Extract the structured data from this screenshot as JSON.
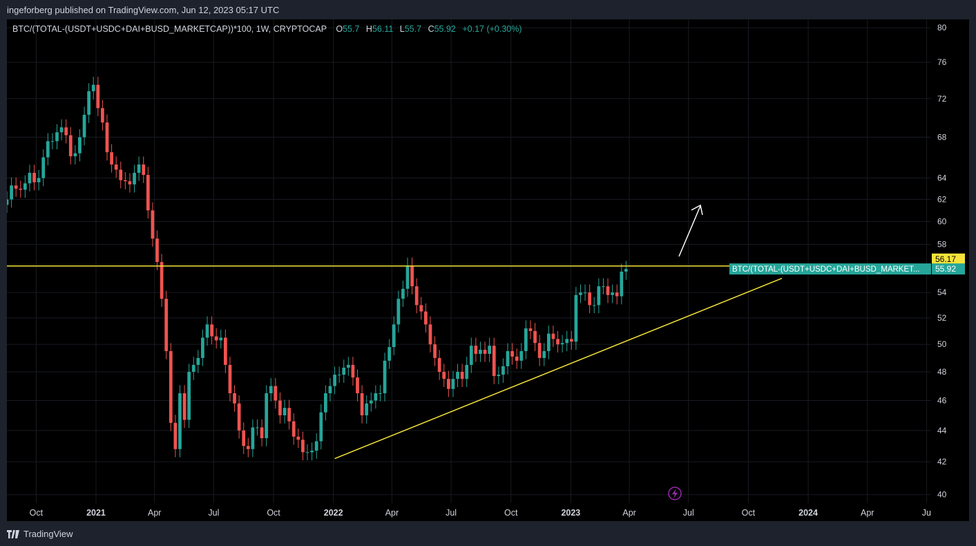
{
  "header": {
    "published": "ingeforberg published on TradingView.com, Jun 12, 2023 05:17 UTC"
  },
  "footer": {
    "brand": "TradingView",
    "logo_icon": "tradingview-logo-icon"
  },
  "colors": {
    "up": "#26a69a",
    "down": "#ef5350",
    "trendline": "#f5e33a",
    "grid": "#181b22",
    "axis_text": "#d1d4dc",
    "white": "#ffffff"
  },
  "chart_data": {
    "type": "candlestick",
    "symbol_line": {
      "symbol": "BTC/(TOTAL-(USDT+USDC+DAI+BUSD_MARKETCAP))*100, 1W, CRYPTOCAP",
      "o_label": "O",
      "o_value": "55.7",
      "h_label": "H",
      "h_value": "56.11",
      "l_label": "L",
      "l_value": "55.7",
      "c_label": "C",
      "c_value": "55.92",
      "change": "+0.17 (+0.30%)"
    },
    "y_scale": "log",
    "ylim": [
      39.5,
      81
    ],
    "y_ticks": [
      80,
      76,
      72,
      68,
      64,
      62,
      60,
      58,
      54,
      52,
      50,
      48,
      46,
      44,
      42,
      40
    ],
    "x_ticks": [
      {
        "label": "Oct",
        "date": "2020-10-01",
        "bold": false
      },
      {
        "label": "2021",
        "date": "2021-01-01",
        "bold": true
      },
      {
        "label": "Apr",
        "date": "2021-04-01",
        "bold": false
      },
      {
        "label": "Jul",
        "date": "2021-07-01",
        "bold": false
      },
      {
        "label": "Oct",
        "date": "2021-10-01",
        "bold": false
      },
      {
        "label": "2022",
        "date": "2022-01-01",
        "bold": true
      },
      {
        "label": "Apr",
        "date": "2022-04-01",
        "bold": false
      },
      {
        "label": "Jul",
        "date": "2022-07-01",
        "bold": false
      },
      {
        "label": "Oct",
        "date": "2022-10-01",
        "bold": false
      },
      {
        "label": "2023",
        "date": "2023-01-01",
        "bold": true
      },
      {
        "label": "Apr",
        "date": "2023-04-01",
        "bold": false
      },
      {
        "label": "Jul",
        "date": "2023-07-01",
        "bold": false
      },
      {
        "label": "Oct",
        "date": "2023-10-01",
        "bold": false
      },
      {
        "label": "2024",
        "date": "2024-01-01",
        "bold": true
      },
      {
        "label": "Apr",
        "date": "2024-04-01",
        "bold": false
      },
      {
        "label": "Ju",
        "date": "2024-07-01",
        "bold": false
      }
    ],
    "xlim": [
      "2020-08-17",
      "2024-07-08"
    ],
    "first_candle_date": "2020-08-17",
    "close": [
      62.0,
      63.3,
      63.0,
      62.9,
      63.5,
      64.5,
      63.6,
      64.0,
      66.0,
      67.6,
      67.6,
      68.5,
      69.0,
      68.2,
      66.1,
      66.4,
      68.0,
      70.3,
      72.8,
      73.5,
      71.0,
      69.5,
      66.5,
      65.3,
      64.8,
      63.8,
      63.7,
      63.4,
      64.5,
      65.3,
      64.3,
      61.0,
      58.5,
      56.5,
      53.5,
      49.5,
      44.5,
      42.8,
      46.5,
      44.7,
      48.0,
      48.5,
      49.0,
      50.5,
      51.5,
      50.6,
      50.3,
      50.5,
      48.5,
      46.5,
      45.8,
      44.0,
      43.0,
      42.8,
      44.2,
      44.2,
      43.5,
      46.5,
      47.0,
      46.0,
      45.0,
      45.5,
      44.6,
      43.6,
      43.4,
      42.6,
      42.6,
      42.7,
      43.3,
      45.2,
      46.5,
      47.0,
      47.8,
      47.8,
      48.3,
      48.5,
      47.6,
      46.5,
      45.0,
      45.8,
      46.0,
      46.5,
      46.5,
      48.8,
      49.8,
      51.5,
      53.5,
      54.3,
      56.2,
      54.5,
      53.0,
      52.5,
      51.5,
      50.0,
      49.0,
      48.0,
      47.5,
      46.8,
      47.5,
      48.0,
      47.5,
      48.5,
      49.9,
      49.3,
      49.6,
      49.3,
      49.9,
      47.7,
      47.8,
      48.4,
      49.5,
      49.1,
      48.8,
      49.5,
      51.2,
      51.0,
      50.1,
      49.0,
      49.5,
      50.8,
      50.4,
      50.0,
      50.1,
      50.4,
      50.2,
      53.8,
      54.0,
      54.0,
      53.0,
      53.0,
      54.5,
      54.5,
      53.8,
      54.0,
      53.7,
      55.7,
      55.92
    ]
  }
}
